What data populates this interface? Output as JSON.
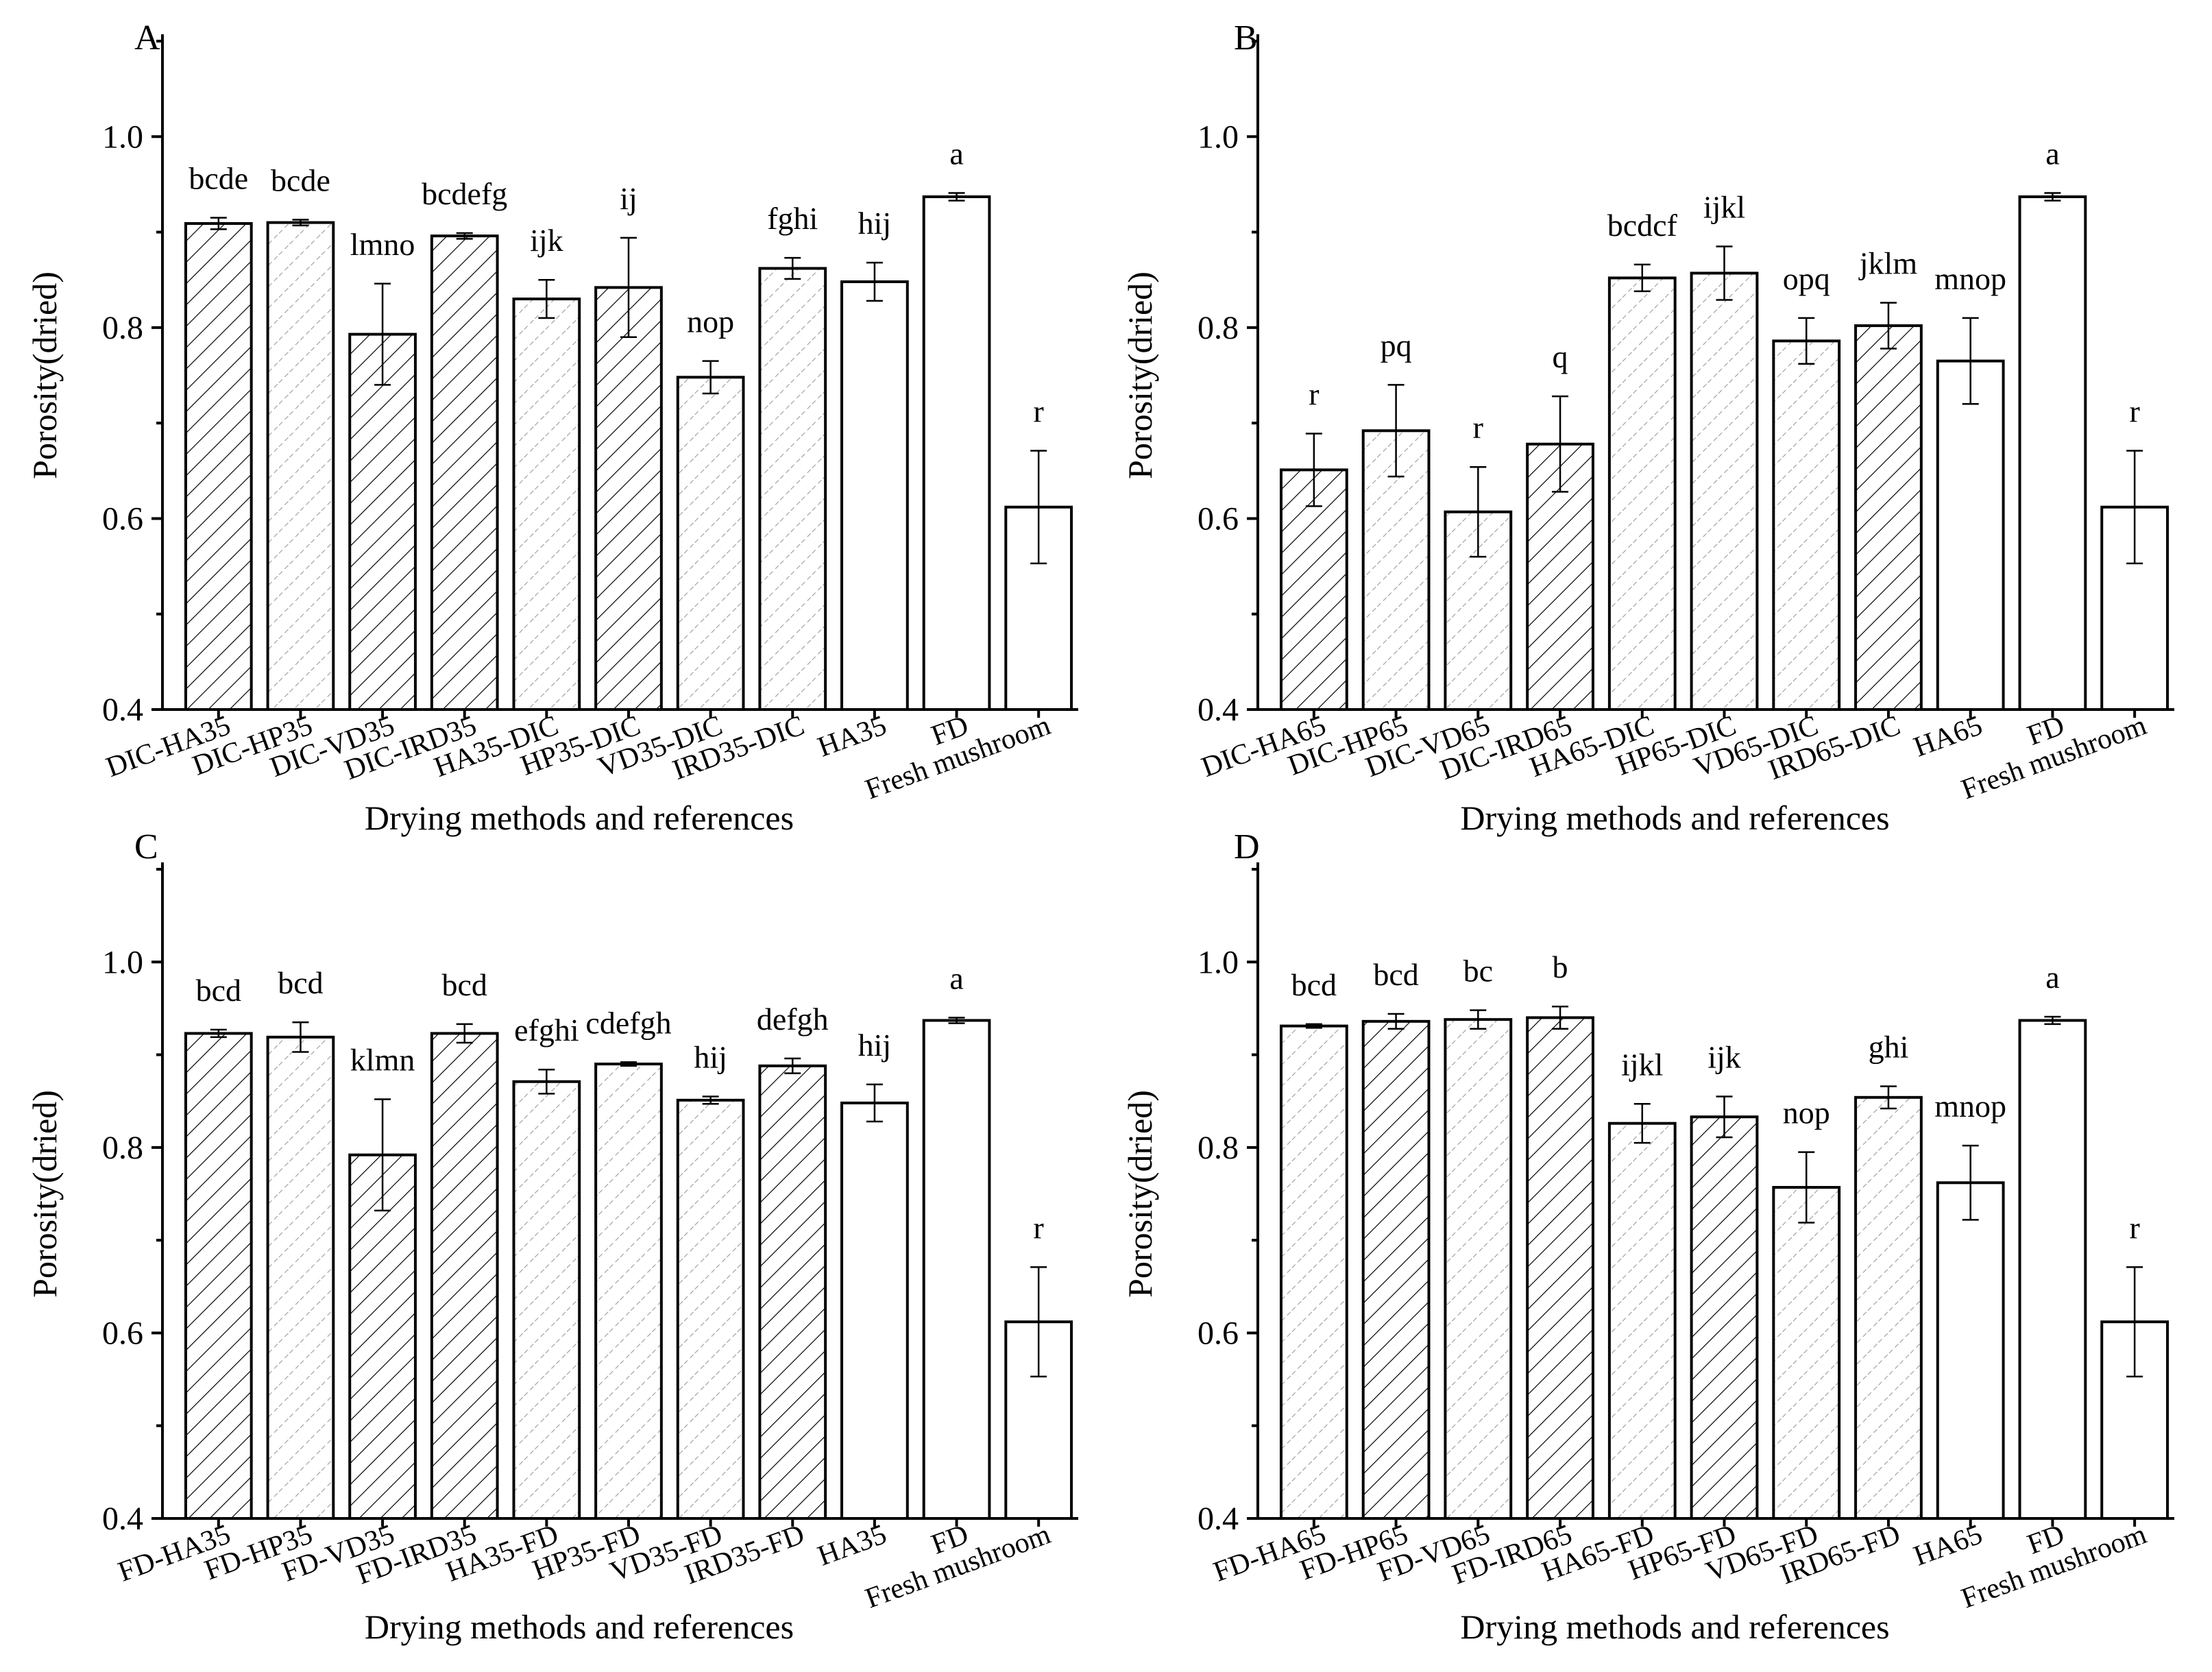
{
  "figure": {
    "colors": {
      "axis": "#000000",
      "background": "#ffffff",
      "hatch_dense": "#000000",
      "hatch_light": "#9a9a9a",
      "open_bar": "#ffffff"
    },
    "pattern_names": [
      "dense-diagonal-hatch",
      "light-dashed-hatch",
      "open"
    ]
  },
  "chart_data": [
    {
      "type": "bar",
      "panel": "A",
      "xlabel": "Drying methods and references",
      "ylabel": "Porosity(dried)",
      "ylim": [
        0.4,
        1.1
      ],
      "yticks": [
        "0.4",
        "0.6",
        "0.8",
        "1.0"
      ],
      "categories": [
        "DIC-HA35",
        "DIC-HP35",
        "DIC-VD35",
        "DIC-IRD35",
        "HA35-DIC",
        "HP35-DIC",
        "VD35-DIC",
        "IRD35-DIC",
        "HA35",
        "FD",
        "Fresh mushroom"
      ],
      "values": [
        0.909,
        0.91,
        0.793,
        0.896,
        0.83,
        0.842,
        0.748,
        0.862,
        0.848,
        0.937,
        0.612
      ],
      "errors": [
        0.006,
        0.003,
        0.053,
        0.003,
        0.02,
        0.052,
        0.017,
        0.011,
        0.02,
        0.004,
        0.059
      ],
      "fills": [
        "hatch",
        "dash",
        "hatch",
        "hatch",
        "dash",
        "hatch",
        "dash",
        "dash",
        "open",
        "open",
        "open"
      ],
      "letters": [
        "bcde",
        "bcde",
        "lmno",
        "bcdefg",
        "ijk",
        "ij",
        "nop",
        "fghi",
        "hij",
        "a",
        "r"
      ]
    },
    {
      "type": "bar",
      "panel": "B",
      "xlabel": "Drying methods and references",
      "ylabel": "Porosity(dried)",
      "ylim": [
        0.4,
        1.1
      ],
      "yticks": [
        "0.4",
        "0.6",
        "0.8",
        "1.0"
      ],
      "categories": [
        "DIC-HA65",
        "DIC-HP65",
        "DIC-VD65",
        "DIC-IRD65",
        "HA65-DIC",
        "HP65-DIC",
        "VD65-DIC",
        "IRD65-DIC",
        "HA65",
        "FD",
        "Fresh mushroom"
      ],
      "values": [
        0.651,
        0.692,
        0.607,
        0.678,
        0.852,
        0.857,
        0.786,
        0.802,
        0.765,
        0.937,
        0.612
      ],
      "errors": [
        0.038,
        0.048,
        0.047,
        0.05,
        0.014,
        0.028,
        0.024,
        0.024,
        0.045,
        0.004,
        0.059
      ],
      "fills": [
        "hatch",
        "dash",
        "dash",
        "hatch",
        "dash",
        "dash",
        "dash",
        "hatch",
        "open",
        "open",
        "open"
      ],
      "letters": [
        "r",
        "pq",
        "r",
        "q",
        "bcdcf",
        "ijkl",
        "opq",
        "jklm",
        "mnop",
        "a",
        "r"
      ]
    },
    {
      "type": "bar",
      "panel": "C",
      "xlabel": "Drying methods and references",
      "ylabel": "Porosity(dried)",
      "ylim": [
        0.4,
        1.1
      ],
      "yticks": [
        "0.4",
        "0.6",
        "0.8",
        "1.0"
      ],
      "categories": [
        "FD-HA35",
        "FD-HP35",
        "FD-VD35",
        "FD-IRD35",
        "HA35-FD",
        "HP35-FD",
        "VD35-FD",
        "IRD35-FD",
        "HA35",
        "FD",
        "Fresh mushroom"
      ],
      "values": [
        0.923,
        0.919,
        0.792,
        0.923,
        0.871,
        0.89,
        0.851,
        0.888,
        0.848,
        0.937,
        0.612
      ],
      "errors": [
        0.004,
        0.016,
        0.06,
        0.01,
        0.013,
        0.002,
        0.004,
        0.008,
        0.02,
        0.003,
        0.059
      ],
      "fills": [
        "hatch",
        "dash",
        "hatch",
        "hatch",
        "dash",
        "dash",
        "dash",
        "hatch",
        "open",
        "open",
        "open"
      ],
      "letters": [
        "bcd",
        "bcd",
        "klmn",
        "bcd",
        "efghi",
        "cdefgh",
        "hij",
        "defgh",
        "hij",
        "a",
        "r"
      ]
    },
    {
      "type": "bar",
      "panel": "D",
      "xlabel": "Drying methods and references",
      "ylabel": "Porosity(dried)",
      "ylim": [
        0.4,
        1.1
      ],
      "yticks": [
        "0.4",
        "0.6",
        "0.8",
        "1.0"
      ],
      "categories": [
        "FD-HA65",
        "FD-HP65",
        "FD-VD65",
        "FD-IRD65",
        "HA65-FD",
        "HP65-FD",
        "VD65-FD",
        "IRD65-FD",
        "HA65",
        "FD",
        "Fresh mushroom"
      ],
      "values": [
        0.931,
        0.936,
        0.938,
        0.94,
        0.826,
        0.833,
        0.757,
        0.854,
        0.762,
        0.937,
        0.612
      ],
      "errors": [
        0.002,
        0.008,
        0.01,
        0.012,
        0.021,
        0.022,
        0.038,
        0.012,
        0.04,
        0.004,
        0.059
      ],
      "fills": [
        "dash",
        "hatch",
        "dash",
        "hatch",
        "dash",
        "hatch",
        "dash",
        "dash",
        "open",
        "open",
        "open"
      ],
      "letters": [
        "bcd",
        "bcd",
        "bc",
        "b",
        "ijkl",
        "ijk",
        "nop",
        "ghi",
        "mnop",
        "a",
        "r"
      ]
    }
  ]
}
